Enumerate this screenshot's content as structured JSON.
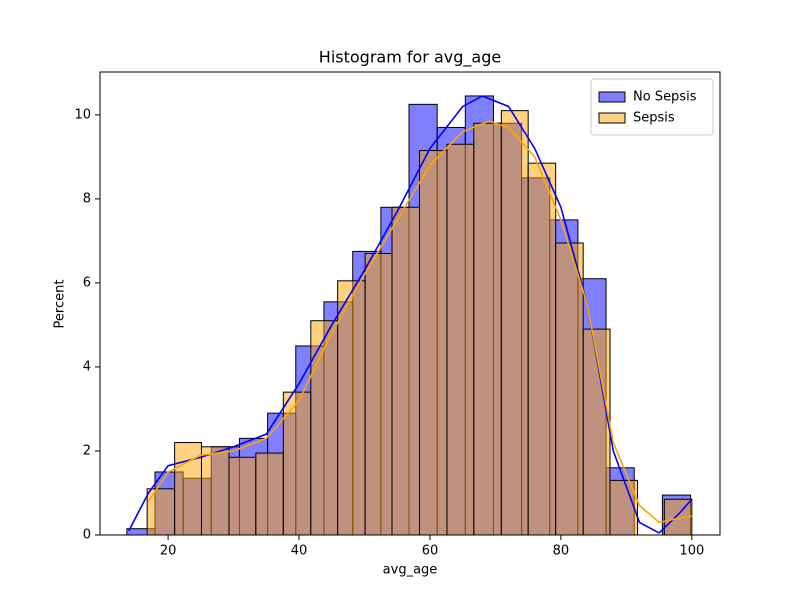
{
  "chart_data": {
    "type": "histogram",
    "title": "Histogram for avg_age",
    "x_label": "avg_age",
    "y_label": "Percent",
    "xlim": [
      9.6,
      104.3
    ],
    "ylim": [
      0,
      11.02
    ],
    "xticks": [
      20,
      40,
      60,
      80,
      100
    ],
    "yticks": [
      0,
      2,
      4,
      6,
      8,
      10
    ],
    "legend": "upper right",
    "series": [
      {
        "name": "No Sepsis",
        "color": "#0000ff",
        "bins": [
          13.7,
          18.0,
          22.3,
          26.6,
          30.9,
          35.2,
          39.5,
          43.8,
          48.2,
          52.5,
          56.8,
          61.1,
          65.4,
          69.7,
          74.0,
          78.3,
          82.6,
          86.9,
          91.2,
          95.5,
          99.8
        ],
        "values": [
          0.15,
          1.5,
          1.35,
          2.1,
          2.3,
          2.9,
          4.5,
          5.55,
          6.75,
          7.8,
          10.25,
          9.7,
          10.45,
          9.8,
          8.5,
          7.5,
          6.1,
          1.6,
          0,
          0.95
        ],
        "kde_x": [
          14,
          17,
          20,
          25,
          30,
          35,
          40,
          45,
          50,
          55,
          60,
          65,
          68,
          72,
          76,
          80,
          84,
          88,
          92,
          95,
          98,
          100
        ],
        "kde_values": [
          0.1,
          1.0,
          1.65,
          1.85,
          2.1,
          2.4,
          3.6,
          5.0,
          6.3,
          7.7,
          9.2,
          10.2,
          10.45,
          10.2,
          9.2,
          7.8,
          5.5,
          2.0,
          0.3,
          0.05,
          0.5,
          0.85
        ]
      },
      {
        "name": "Sepsis",
        "color": "#ffa500",
        "bins": [
          16.8,
          21.0,
          25.1,
          29.3,
          33.4,
          37.6,
          41.8,
          45.9,
          50.1,
          54.2,
          58.4,
          62.6,
          66.7,
          70.9,
          75.0,
          79.2,
          83.4,
          87.5,
          91.7,
          95.8,
          100
        ],
        "values": [
          1.1,
          2.2,
          2.1,
          1.85,
          1.95,
          3.4,
          5.1,
          6.05,
          6.7,
          7.8,
          9.15,
          9.3,
          9.8,
          10.1,
          8.85,
          6.95,
          4.9,
          1.3,
          0,
          0.85
        ],
        "kde_x": [
          17,
          20,
          25,
          30,
          35,
          40,
          45,
          50,
          55,
          60,
          65,
          69,
          72,
          76,
          80,
          84,
          88,
          92,
          95,
          98,
          100
        ],
        "kde_values": [
          0.8,
          1.5,
          1.9,
          2.0,
          2.3,
          3.2,
          4.8,
          6.2,
          7.5,
          8.8,
          9.6,
          9.85,
          9.7,
          9.0,
          7.5,
          5.5,
          2.2,
          0.7,
          0.3,
          0.4,
          0.45
        ]
      }
    ]
  }
}
